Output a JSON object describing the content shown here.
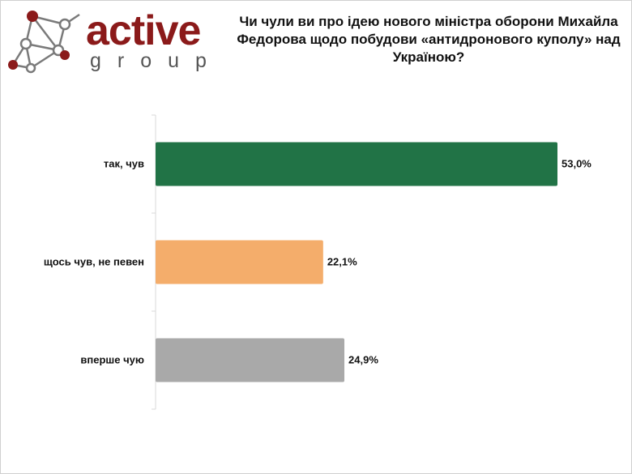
{
  "logo": {
    "word": "active",
    "sub": "group",
    "colors": {
      "primary": "#8b1a1a",
      "secondary": "#555555"
    }
  },
  "title": "Чи чули ви про ідею нового міністра оборони Михайла Федорова щодо побудови «антидронового куполу» над Україною?",
  "chart_data": {
    "type": "bar",
    "orientation": "horizontal",
    "title": "Чи чули ви про ідею нового міністра оборони Михайла Федорова щодо побудови «антидронового куполу» над Україною?",
    "categories": [
      "так, чув",
      "щось чув, не певен",
      "вперше чую"
    ],
    "values": [
      53.0,
      22.1,
      24.9
    ],
    "value_labels": [
      "53,0%",
      "22,1%",
      "24,9%"
    ],
    "colors": [
      "#217346",
      "#f4ad6b",
      "#a9a9a9"
    ],
    "xlim": [
      0,
      60
    ],
    "grid": false,
    "legend": "none"
  }
}
